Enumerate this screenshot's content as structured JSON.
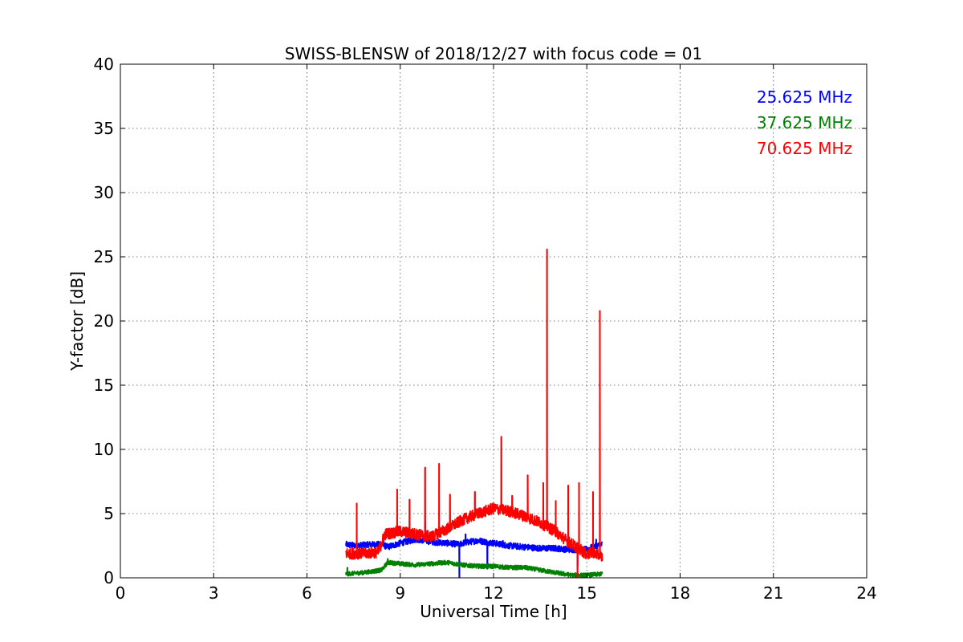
{
  "chart_data": {
    "type": "line",
    "title": "SWISS-BLENSW of 2018/12/27 with focus code = 01",
    "xlabel": "Universal Time [h]",
    "ylabel": "Y-factor [dB]",
    "xlim": [
      0,
      24
    ],
    "ylim": [
      0,
      40
    ],
    "xticks": [
      0,
      3,
      6,
      9,
      12,
      15,
      18,
      21,
      24
    ],
    "yticks": [
      0,
      5,
      10,
      15,
      20,
      25,
      30,
      35,
      40
    ],
    "grid": true,
    "legend_position": "top-right",
    "series": [
      {
        "name": "25.625 MHz",
        "color": "#0000ff",
        "x": [
          7.25,
          7.6,
          8.0,
          8.4,
          8.6,
          9.0,
          9.5,
          9.8,
          10.0,
          10.5,
          10.9,
          11.0,
          11.5,
          12.0,
          12.5,
          13.0,
          13.5,
          14.0,
          14.4,
          14.6,
          15.0,
          15.2,
          15.5
        ],
        "y": [
          2.6,
          2.5,
          2.6,
          2.6,
          2.4,
          2.7,
          3.0,
          2.9,
          2.8,
          2.7,
          2.6,
          2.7,
          2.9,
          2.7,
          2.5,
          2.4,
          2.3,
          2.3,
          2.2,
          2.2,
          2.2,
          2.4,
          2.6
        ],
        "spikes": [
          {
            "x": 9.8,
            "y": 4.4
          },
          {
            "x": 10.9,
            "y": 0.0
          },
          {
            "x": 11.1,
            "y": 3.4
          },
          {
            "x": 11.8,
            "y": 0.7
          },
          {
            "x": 12.3,
            "y": 2.9
          },
          {
            "x": 14.7,
            "y": 0.9
          },
          {
            "x": 15.3,
            "y": 3.0
          }
        ]
      },
      {
        "name": "37.625 MHz",
        "color": "#008000",
        "x": [
          7.25,
          7.8,
          8.4,
          8.6,
          9.0,
          9.5,
          10.0,
          10.5,
          11.0,
          11.5,
          12.0,
          12.5,
          13.0,
          13.5,
          14.0,
          14.5,
          15.0,
          15.5
        ],
        "y": [
          0.3,
          0.4,
          0.6,
          1.2,
          1.1,
          1.0,
          1.1,
          1.2,
          1.0,
          0.9,
          0.9,
          0.8,
          0.8,
          0.6,
          0.4,
          0.2,
          0.2,
          0.3
        ],
        "spikes": [
          {
            "x": 7.3,
            "y": 0.8
          },
          {
            "x": 8.6,
            "y": 1.5
          }
        ]
      },
      {
        "name": "70.625 MHz",
        "color": "#ff0000",
        "x": [
          7.25,
          7.8,
          8.3,
          8.5,
          9.0,
          9.5,
          10.0,
          10.5,
          11.0,
          11.5,
          12.0,
          12.5,
          13.0,
          13.5,
          14.0,
          14.4,
          14.8,
          15.0,
          15.2,
          15.5
        ],
        "y": [
          1.9,
          1.9,
          2.0,
          3.4,
          3.6,
          3.4,
          3.2,
          3.8,
          4.5,
          5.0,
          5.4,
          5.2,
          4.8,
          4.3,
          3.6,
          2.8,
          2.2,
          1.8,
          2.0,
          1.6
        ],
        "spikes": [
          {
            "x": 7.6,
            "y": 5.8
          },
          {
            "x": 8.9,
            "y": 6.9
          },
          {
            "x": 9.3,
            "y": 6.1
          },
          {
            "x": 9.8,
            "y": 8.6
          },
          {
            "x": 10.25,
            "y": 8.9
          },
          {
            "x": 10.6,
            "y": 6.5
          },
          {
            "x": 11.4,
            "y": 6.7
          },
          {
            "x": 12.25,
            "y": 11.0
          },
          {
            "x": 12.6,
            "y": 6.4
          },
          {
            "x": 13.1,
            "y": 8.0
          },
          {
            "x": 13.6,
            "y": 7.4
          },
          {
            "x": 13.72,
            "y": 25.6
          },
          {
            "x": 14.0,
            "y": 6.0
          },
          {
            "x": 14.4,
            "y": 7.2
          },
          {
            "x": 14.7,
            "y": 0.0
          },
          {
            "x": 14.75,
            "y": 7.4
          },
          {
            "x": 15.2,
            "y": 6.7
          },
          {
            "x": 15.42,
            "y": 20.8
          }
        ]
      }
    ]
  }
}
